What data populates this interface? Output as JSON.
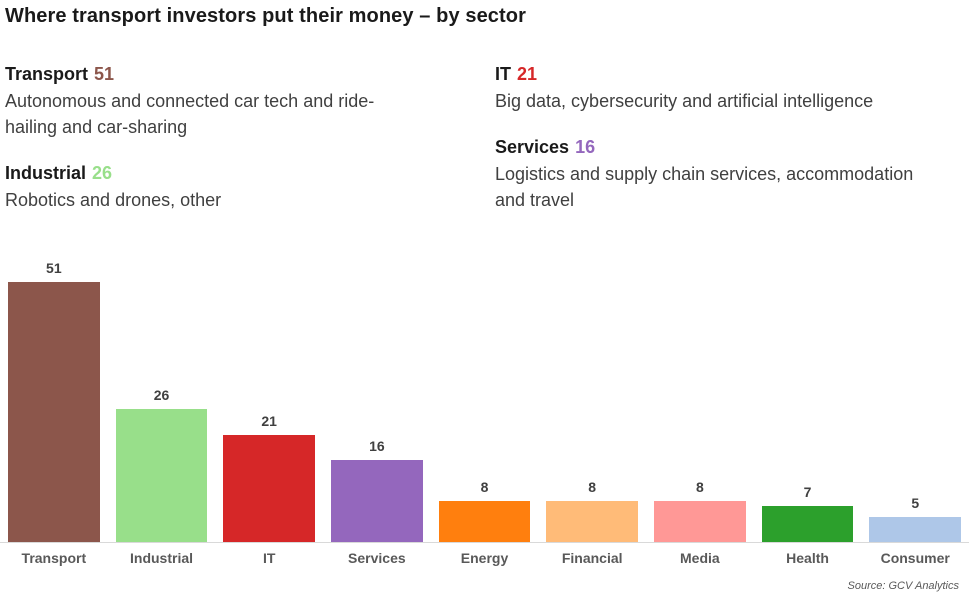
{
  "page": {
    "title": "Where transport investors put their money – by sector",
    "source": "Source: GCV Analytics"
  },
  "legend": {
    "left": [
      {
        "label": "Transport",
        "value": "51",
        "color": "#8c564b",
        "desc": "Autonomous and connected car tech and ride-\nhailing and car-sharing"
      },
      {
        "label": "Industrial",
        "value": "26",
        "color": "#98df8a",
        "desc": "Robotics and drones, other"
      }
    ],
    "right": [
      {
        "label": "IT",
        "value": "21",
        "color": "#d62728",
        "desc": "Big data, cybersecurity and artificial intelligence"
      },
      {
        "label": "Services",
        "value": "16",
        "color": "#9467bd",
        "desc": "Logistics and supply chain services, accommodation\nand travel"
      }
    ]
  },
  "chart_data": {
    "type": "bar",
    "title": "Where transport investors put their money – by sector",
    "categories": [
      "Transport",
      "Industrial",
      "IT",
      "Services",
      "Energy",
      "Financial",
      "Media",
      "Health",
      "Consumer"
    ],
    "values": [
      51,
      26,
      21,
      16,
      8,
      8,
      8,
      7,
      5
    ],
    "colors": [
      "#8c564b",
      "#98df8a",
      "#d62728",
      "#9467bd",
      "#ff7f0e",
      "#ffbb78",
      "#ff9896",
      "#2ca02c",
      "#aec7e8"
    ],
    "xlabel": "",
    "ylabel": "",
    "ylim": [
      0,
      51
    ],
    "grid": false,
    "legend_position": "none",
    "data_labels": true,
    "source": "Source: GCV Analytics"
  }
}
